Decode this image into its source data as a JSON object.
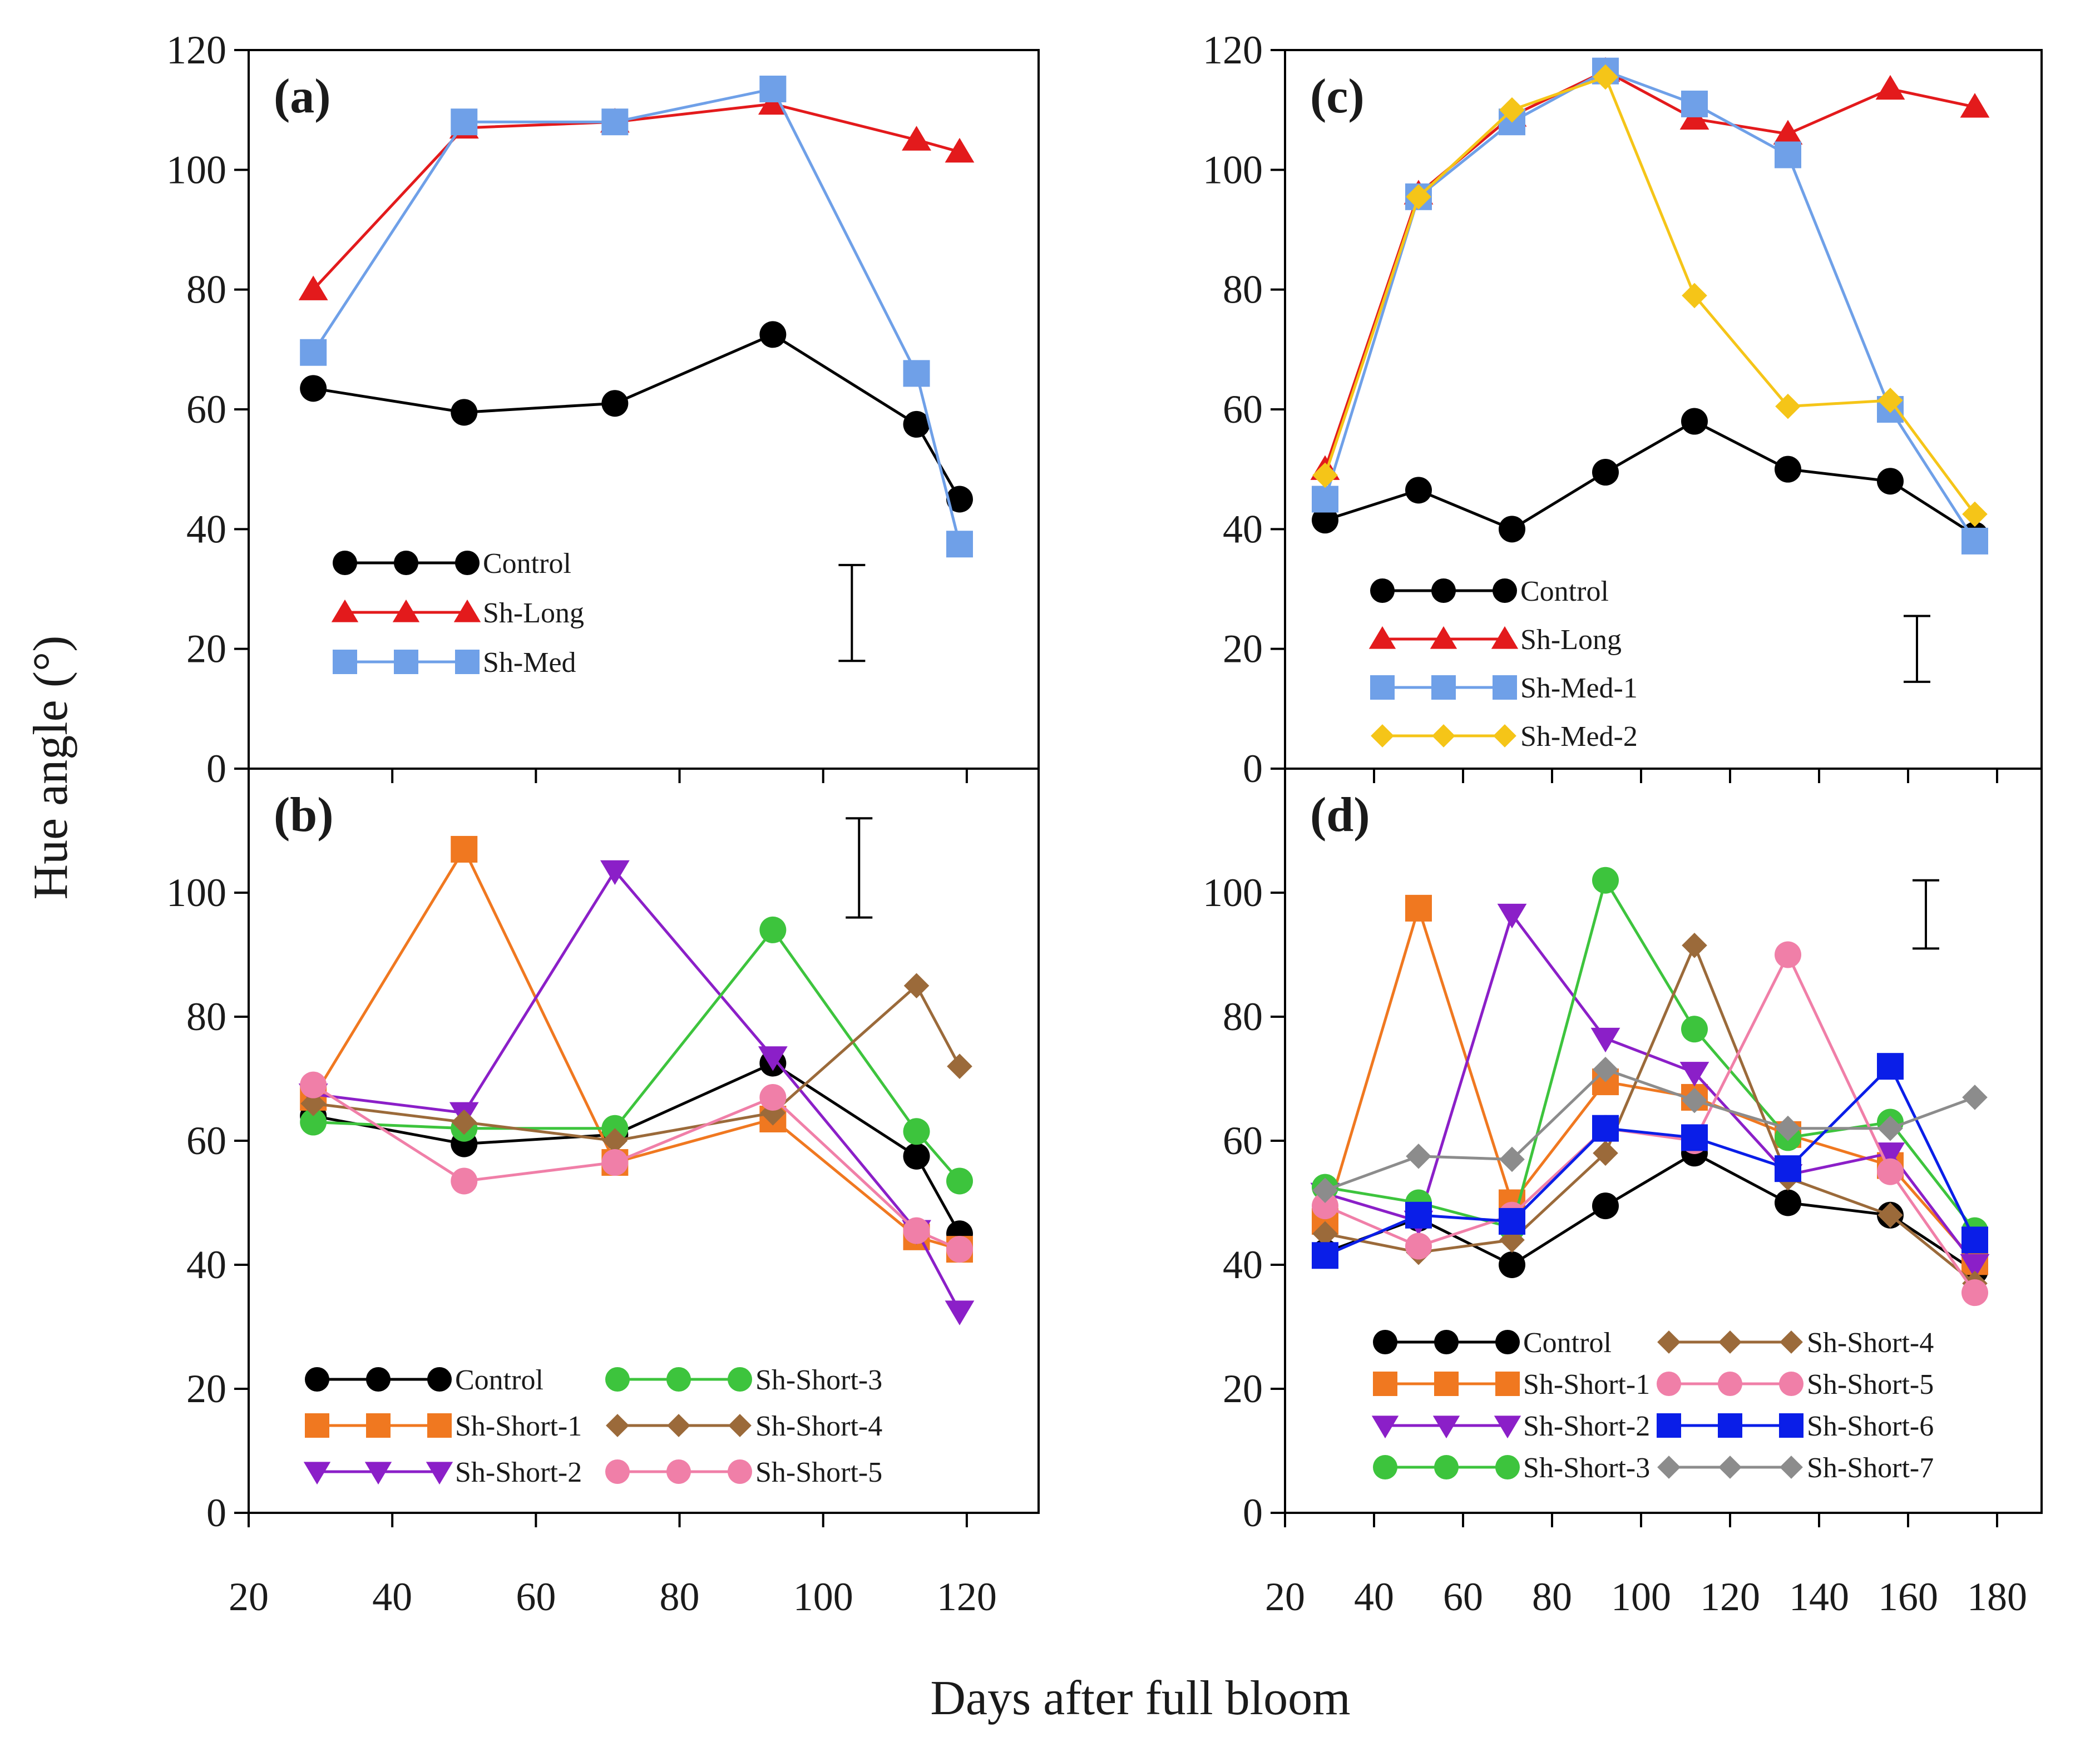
{
  "figure": {
    "ylabel": "Hue angle (°)",
    "xlabel": "Days after full bloom"
  },
  "styles": {
    "Control": {
      "color": "#000000",
      "marker": "circle"
    },
    "Sh-Long": {
      "color": "#e31a1c",
      "marker": "triangle"
    },
    "Sh-Med": {
      "color": "#6fa0e8",
      "marker": "square"
    },
    "Sh-Med-1": {
      "color": "#6fa0e8",
      "marker": "square"
    },
    "Sh-Med-2": {
      "color": "#f5c518",
      "marker": "diamond"
    },
    "Sh-Short-1": {
      "color": "#f07820",
      "marker": "square"
    },
    "Sh-Short-2": {
      "color": "#8b1fc8",
      "marker": "triangle-down"
    },
    "Sh-Short-3": {
      "color": "#3dc43d",
      "marker": "circle"
    },
    "Sh-Short-4": {
      "color": "#9b6a3a",
      "marker": "diamond"
    },
    "Sh-Short-5": {
      "color": "#f07fa8",
      "marker": "circle"
    },
    "Sh-Short-6": {
      "color": "#0a1ee8",
      "marker": "square"
    },
    "Sh-Short-7": {
      "color": "#8c8c8c",
      "marker": "diamond"
    }
  },
  "chart_data": [
    {
      "panel": "(a)",
      "type": "line",
      "xlim": [
        20,
        130
      ],
      "ylim": [
        0,
        120
      ],
      "xticks": [
        20,
        40,
        60,
        80,
        100,
        120
      ],
      "yticks": [
        0,
        20,
        40,
        60,
        80,
        100,
        120
      ],
      "show_xticklabels": false,
      "errorbar": {
        "x": 104,
        "low": 18,
        "high": 34
      },
      "legend_position": "bottom-left",
      "legend_columns": 1,
      "series": [
        {
          "name": "Control",
          "x": [
            29,
            50,
            71,
            93,
            113,
            119
          ],
          "y": [
            63.5,
            59.5,
            61,
            72.5,
            57.5,
            45
          ]
        },
        {
          "name": "Sh-Long",
          "x": [
            29,
            50,
            71,
            93,
            113,
            119
          ],
          "y": [
            80,
            107,
            108,
            111,
            105,
            103
          ]
        },
        {
          "name": "Sh-Med",
          "x": [
            29,
            50,
            71,
            93,
            113,
            119
          ],
          "y": [
            69.5,
            108,
            108,
            113.5,
            66,
            37.5
          ]
        }
      ]
    },
    {
      "panel": "(b)",
      "type": "line",
      "xlim": [
        20,
        130
      ],
      "ylim": [
        0,
        120
      ],
      "xticks": [
        20,
        40,
        60,
        80,
        100,
        120
      ],
      "yticks": [
        0,
        20,
        40,
        60,
        80,
        100
      ],
      "show_xticklabels": true,
      "errorbar": {
        "x": 105,
        "low": 96,
        "high": 112
      },
      "legend_position": "bottom",
      "legend_columns": 2,
      "series": [
        {
          "name": "Control",
          "x": [
            29,
            50,
            71,
            93,
            113,
            119
          ],
          "y": [
            64,
            59.5,
            61,
            72.5,
            57.5,
            45
          ]
        },
        {
          "name": "Sh-Short-1",
          "x": [
            29,
            50,
            71,
            93,
            113,
            119
          ],
          "y": [
            67,
            107,
            56.5,
            63.5,
            44.5,
            42.5
          ]
        },
        {
          "name": "Sh-Short-2",
          "x": [
            29,
            50,
            71,
            93,
            113,
            119
          ],
          "y": [
            67.5,
            64.5,
            103.5,
            73.5,
            45.5,
            32.5
          ]
        },
        {
          "name": "Sh-Short-3",
          "x": [
            29,
            50,
            71,
            93,
            113,
            119
          ],
          "y": [
            63,
            62,
            62,
            94,
            61.5,
            53.5
          ]
        },
        {
          "name": "Sh-Short-4",
          "x": [
            29,
            50,
            71,
            93,
            113,
            119
          ],
          "y": [
            66,
            63,
            60,
            64.5,
            85,
            72
          ]
        },
        {
          "name": "Sh-Short-5",
          "x": [
            29,
            50,
            71,
            93,
            113,
            119
          ],
          "y": [
            69,
            53.5,
            56.5,
            67,
            45.5,
            42.5
          ]
        }
      ]
    },
    {
      "panel": "(c)",
      "type": "line",
      "xlim": [
        20,
        190
      ],
      "ylim": [
        0,
        120
      ],
      "xticks": [
        20,
        40,
        60,
        80,
        100,
        120,
        140,
        160,
        180
      ],
      "yticks": [
        0,
        20,
        40,
        60,
        80,
        100,
        120
      ],
      "show_xticklabels": false,
      "errorbar": {
        "x": 162,
        "low": 14.5,
        "high": 25.5
      },
      "legend_position": "bottom-left",
      "legend_columns": 1,
      "series": [
        {
          "name": "Control",
          "x": [
            29,
            50,
            71,
            92,
            112,
            133,
            156,
            175
          ],
          "y": [
            41.5,
            46.5,
            40,
            49.5,
            58,
            50,
            48,
            39
          ]
        },
        {
          "name": "Sh-Long",
          "x": [
            29,
            50,
            71,
            92,
            112,
            133,
            156,
            175
          ],
          "y": [
            50,
            96,
            109,
            116.5,
            108.5,
            106,
            113.5,
            110.5
          ]
        },
        {
          "name": "Sh-Med-1",
          "x": [
            29,
            50,
            71,
            92,
            112,
            133,
            156,
            175
          ],
          "y": [
            45,
            95.5,
            108,
            116.5,
            111,
            102.5,
            60,
            38
          ]
        },
        {
          "name": "Sh-Med-2",
          "x": [
            29,
            50,
            71,
            92,
            112,
            133,
            156,
            175
          ],
          "y": [
            49,
            95.5,
            110,
            115.5,
            79,
            60.5,
            61.5,
            42.5
          ]
        }
      ]
    },
    {
      "panel": "(d)",
      "type": "line",
      "xlim": [
        20,
        190
      ],
      "ylim": [
        0,
        120
      ],
      "xticks": [
        20,
        40,
        60,
        80,
        100,
        120,
        140,
        160,
        180
      ],
      "yticks": [
        0,
        20,
        40,
        60,
        80,
        100
      ],
      "show_xticklabels": true,
      "errorbar": {
        "x": 164,
        "low": 91,
        "high": 102
      },
      "legend_position": "bottom",
      "legend_columns": 2,
      "series": [
        {
          "name": "Control",
          "x": [
            29,
            50,
            71,
            92,
            112,
            133,
            156,
            175
          ],
          "y": [
            42,
            47.5,
            40,
            49.5,
            58,
            50,
            48,
            39
          ]
        },
        {
          "name": "Sh-Short-1",
          "x": [
            29,
            50,
            71,
            92,
            112,
            133,
            156,
            175
          ],
          "y": [
            47,
            97.5,
            50,
            69.5,
            67,
            61,
            56,
            40.5
          ]
        },
        {
          "name": "Sh-Short-2",
          "x": [
            29,
            50,
            71,
            92,
            112,
            133,
            156,
            175
          ],
          "y": [
            51.5,
            47,
            96.5,
            76.5,
            71,
            54.5,
            58,
            40
          ]
        },
        {
          "name": "Sh-Short-3",
          "x": [
            29,
            50,
            71,
            92,
            112,
            133,
            156,
            175
          ],
          "y": [
            52.5,
            50,
            46,
            102,
            78,
            60.5,
            63,
            45.5
          ]
        },
        {
          "name": "Sh-Short-4",
          "x": [
            29,
            50,
            71,
            92,
            112,
            133,
            156,
            175
          ],
          "y": [
            45,
            42,
            44,
            58,
            91.5,
            54,
            48,
            37
          ]
        },
        {
          "name": "Sh-Short-5",
          "x": [
            29,
            50,
            71,
            92,
            112,
            133,
            156,
            175
          ],
          "y": [
            49.5,
            43,
            48,
            62,
            60,
            90,
            55,
            35.5
          ]
        },
        {
          "name": "Sh-Short-6",
          "x": [
            29,
            50,
            71,
            92,
            112,
            133,
            156,
            175
          ],
          "y": [
            41.5,
            48,
            47,
            62,
            60.5,
            55.5,
            72,
            44
          ]
        },
        {
          "name": "Sh-Short-7",
          "x": [
            29,
            50,
            71,
            92,
            112,
            133,
            156,
            175
          ],
          "y": [
            52,
            57.5,
            57,
            71.5,
            66.5,
            62,
            62,
            67
          ]
        }
      ]
    }
  ]
}
